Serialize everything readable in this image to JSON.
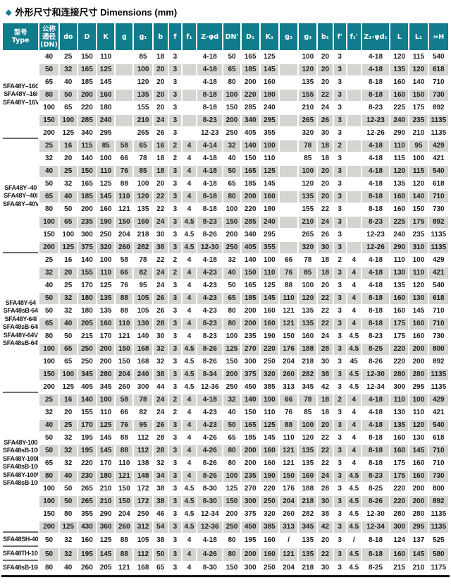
{
  "title": {
    "bullet": "◆",
    "text": "外形尺寸和连接尺寸 Dimensions (mm)"
  },
  "colors": {
    "header_bg": "#107c8c",
    "row_stripe": "#d4d4d1",
    "accent": "#107c8c",
    "bottom_border": "#141414"
  },
  "table": {
    "headers": [
      "型号\nType",
      "公称\n通径\n(DN)",
      "do",
      "D",
      "K",
      "g",
      "g₁",
      "b",
      "f",
      "f₁",
      "Z-φd",
      "DN'",
      "D₁",
      "K₁",
      "g₃",
      "g₂",
      "b₁",
      "f'",
      "f₁'",
      "Z₁-φd₁",
      "L",
      "L₁",
      "≈H"
    ],
    "groups": [
      {
        "models": [
          "SFA48Y–16C",
          "SFA48Y–16I",
          "SFA48Y–16V"
        ],
        "rows": [
          [
            "40",
            "25",
            "150",
            "110",
            "",
            "85",
            "18",
            "3",
            "",
            "4-18",
            "50",
            "165",
            "125",
            "",
            "100",
            "20",
            "3",
            "",
            "4-18",
            "120",
            "115",
            "540"
          ],
          [
            "50",
            "32",
            "165",
            "125",
            "",
            "100",
            "20",
            "3",
            "",
            "4-18",
            "65",
            "185",
            "145",
            "",
            "120",
            "20",
            "3",
            "",
            "4-18",
            "135",
            "120",
            "618"
          ],
          [
            "65",
            "40",
            "185",
            "145",
            "",
            "120",
            "20",
            "3",
            "",
            "4-18",
            "80",
            "200",
            "160",
            "",
            "135",
            "20",
            "3",
            "",
            "8-18",
            "160",
            "140",
            "710"
          ],
          [
            "80",
            "50",
            "200",
            "160",
            "",
            "135",
            "20",
            "3",
            "",
            "8-18",
            "100",
            "220",
            "180",
            "",
            "155",
            "22",
            "3",
            "",
            "8-18",
            "160",
            "150",
            "730"
          ],
          [
            "100",
            "65",
            "220",
            "180",
            "",
            "155",
            "20",
            "3",
            "",
            "8-18",
            "150",
            "285",
            "240",
            "",
            "210",
            "24",
            "3",
            "",
            "8-23",
            "225",
            "175",
            "892"
          ],
          [
            "150",
            "100",
            "285",
            "240",
            "",
            "210",
            "24",
            "3",
            "",
            "8-23",
            "200",
            "340",
            "295",
            "",
            "265",
            "26",
            "3",
            "",
            "12-23",
            "240",
            "235",
            "1135"
          ],
          [
            "200",
            "125",
            "340",
            "295",
            "",
            "265",
            "26",
            "3",
            "",
            "12-23",
            "250",
            "405",
            "355",
            "",
            "320",
            "30",
            "3",
            "",
            "12-26",
            "290",
            "210",
            "1135"
          ]
        ]
      },
      {
        "models": [
          "SFA48Y–40",
          "SFA48Y–40I",
          "SFA48Y–40V"
        ],
        "rows": [
          [
            "25",
            "16",
            "115",
            "85",
            "58",
            "65",
            "16",
            "2",
            "4",
            "4-14",
            "32",
            "140",
            "100",
            "",
            "78",
            "18",
            "2",
            "",
            "4-18",
            "110",
            "95",
            "429"
          ],
          [
            "32",
            "20",
            "140",
            "100",
            "66",
            "78",
            "18",
            "2",
            "4",
            "4-18",
            "40",
            "150",
            "110",
            "",
            "85",
            "18",
            "3",
            "",
            "4-18",
            "115",
            "100",
            "421"
          ],
          [
            "40",
            "25",
            "150",
            "110",
            "76",
            "85",
            "18",
            "3",
            "4",
            "4-18",
            "50",
            "165",
            "125",
            "",
            "100",
            "20",
            "3",
            "",
            "4-18",
            "120",
            "115",
            "540"
          ],
          [
            "50",
            "32",
            "165",
            "125",
            "88",
            "100",
            "20",
            "3",
            "4",
            "4-18",
            "65",
            "185",
            "145",
            "",
            "120",
            "20",
            "3",
            "",
            "4-18",
            "135",
            "120",
            "618"
          ],
          [
            "65",
            "40",
            "185",
            "145",
            "110",
            "120",
            "22",
            "3",
            "4",
            "8-18",
            "80",
            "200",
            "160",
            "",
            "135",
            "20",
            "3",
            "",
            "8-18",
            "160",
            "140",
            "710"
          ],
          [
            "80",
            "50",
            "200",
            "160",
            "121",
            "135",
            "22",
            "3",
            "4",
            "8-18",
            "100",
            "220",
            "180",
            "",
            "155",
            "22",
            "3",
            "",
            "8-18",
            "160",
            "150",
            "730"
          ],
          [
            "100",
            "65",
            "235",
            "190",
            "150",
            "160",
            "24",
            "3",
            "4.5",
            "8-23",
            "150",
            "285",
            "240",
            "",
            "210",
            "24",
            "3",
            "",
            "8-23",
            "225",
            "175",
            "892"
          ],
          [
            "150",
            "100",
            "300",
            "250",
            "204",
            "218",
            "30",
            "3",
            "4.5",
            "8-26",
            "200",
            "340",
            "295",
            "",
            "265",
            "26",
            "3",
            "",
            "12-23",
            "240",
            "235",
            "1135"
          ],
          [
            "200",
            "125",
            "375",
            "320",
            "260",
            "282",
            "38",
            "3",
            "4.5",
            "12-30",
            "250",
            "405",
            "355",
            "",
            "320",
            "30",
            "3",
            "",
            "12-26",
            "290",
            "310",
            "1135"
          ]
        ]
      },
      {
        "models": [
          "SFA48Y-64",
          "SFA48sB-64",
          "SFA48Y-64I",
          "SFA48sB-64I",
          "SFA48Y-64V",
          "SFA48sB-64V"
        ],
        "rows": [
          [
            "25",
            "16",
            "140",
            "100",
            "58",
            "78",
            "22",
            "2",
            "4",
            "4-18",
            "32",
            "140",
            "100",
            "66",
            "78",
            "18",
            "2",
            "4",
            "4-18",
            "110",
            "100",
            "429"
          ],
          [
            "32",
            "20",
            "155",
            "110",
            "66",
            "82",
            "24",
            "2",
            "4",
            "4-23",
            "40",
            "150",
            "110",
            "76",
            "85",
            "18",
            "3",
            "4",
            "4-18",
            "130",
            "110",
            "421"
          ],
          [
            "40",
            "25",
            "170",
            "125",
            "76",
            "95",
            "24",
            "3",
            "4",
            "4-23",
            "50",
            "165",
            "125",
            "88",
            "100",
            "20",
            "3",
            "4",
            "4-18",
            "135",
            "120",
            "540"
          ],
          [
            "50",
            "32",
            "180",
            "135",
            "88",
            "105",
            "26",
            "3",
            "4",
            "4-23",
            "65",
            "185",
            "145",
            "110",
            "120",
            "22",
            "3",
            "4",
            "8-18",
            "160",
            "130",
            "618"
          ],
          [
            "50",
            "32",
            "180",
            "135",
            "88",
            "105",
            "26",
            "3",
            "4",
            "4-23",
            "80",
            "200",
            "160",
            "121",
            "135",
            "22",
            "3",
            "4",
            "8-18",
            "160",
            "145",
            "710"
          ],
          [
            "65",
            "40",
            "205",
            "160",
            "110",
            "130",
            "28",
            "3",
            "4",
            "8-23",
            "80",
            "200",
            "160",
            "121",
            "135",
            "22",
            "3",
            "4",
            "8-18",
            "175",
            "160",
            "710"
          ],
          [
            "80",
            "50",
            "215",
            "170",
            "121",
            "140",
            "30",
            "3",
            "4",
            "8-23",
            "100",
            "235",
            "190",
            "150",
            "160",
            "24",
            "3",
            "4.5",
            "8-23",
            "175",
            "160",
            "730"
          ],
          [
            "100",
            "65",
            "250",
            "200",
            "150",
            "168",
            "32",
            "3",
            "4.5",
            "8-26",
            "125",
            "270",
            "220",
            "176",
            "188",
            "28",
            "3",
            "4.5",
            "8-25",
            "220",
            "200",
            "800"
          ],
          [
            "100",
            "65",
            "250",
            "200",
            "150",
            "168",
            "32",
            "3",
            "4.5",
            "8-26",
            "150",
            "300",
            "250",
            "204",
            "218",
            "30",
            "3",
            "45",
            "8-26",
            "220",
            "200",
            "892"
          ],
          [
            "150",
            "100",
            "345",
            "280",
            "204",
            "240",
            "38",
            "3",
            "4.5",
            "8-34",
            "200",
            "375",
            "320",
            "260",
            "282",
            "38",
            "3",
            "4.5",
            "12-30",
            "280",
            "280",
            "1135"
          ],
          [
            "200",
            "125",
            "405",
            "345",
            "260",
            "300",
            "44",
            "3",
            "4.5",
            "12-36",
            "250",
            "450",
            "385",
            "313",
            "345",
            "42",
            "3",
            "4.5",
            "12-34",
            "300",
            "295",
            "1135"
          ]
        ]
      },
      {
        "models": [
          "SFA48Y-100",
          "SFA48sB-100",
          "SFA48Y-100I",
          "SFA48sB-100I",
          "SFA48Y-100V",
          "SFA48sB-100V"
        ],
        "rows": [
          [
            "25",
            "16",
            "140",
            "100",
            "58",
            "78",
            "24",
            "2",
            "4",
            "4-18",
            "32",
            "140",
            "100",
            "66",
            "78",
            "18",
            "2",
            "4",
            "4-18",
            "110",
            "100",
            "429"
          ],
          [
            "32",
            "20",
            "155",
            "110",
            "66",
            "82",
            "24",
            "2",
            "4",
            "4-23",
            "40",
            "150",
            "110",
            "76",
            "85",
            "18",
            "3",
            "4",
            "4-18",
            "130",
            "110",
            "421"
          ],
          [
            "40",
            "25",
            "170",
            "125",
            "76",
            "95",
            "26",
            "3",
            "4",
            "4-23",
            "50",
            "165",
            "125",
            "88",
            "100",
            "20",
            "3",
            "4",
            "4-18",
            "135",
            "120",
            "540"
          ],
          [
            "50",
            "32",
            "195",
            "145",
            "88",
            "112",
            "28",
            "3",
            "4",
            "4-26",
            "65",
            "185",
            "145",
            "110",
            "120",
            "22",
            "3",
            "4",
            "8-18",
            "160",
            "130",
            "618"
          ],
          [
            "50",
            "32",
            "195",
            "145",
            "88",
            "112",
            "28",
            "3",
            "4",
            "4-26",
            "80",
            "200",
            "160",
            "121",
            "135",
            "22",
            "3",
            "4",
            "8-18",
            "160",
            "145",
            "710"
          ],
          [
            "65",
            "32",
            "220",
            "170",
            "110",
            "138",
            "32",
            "3",
            "4",
            "8-26",
            "80",
            "200",
            "160",
            "121",
            "135",
            "22",
            "3",
            "4",
            "8-18",
            "175",
            "160",
            "710"
          ],
          [
            "80",
            "40",
            "230",
            "180",
            "121",
            "148",
            "34",
            "3",
            "4",
            "8-26",
            "100",
            "235",
            "190",
            "150",
            "160",
            "24",
            "3",
            "4.5",
            "8-23",
            "175",
            "160",
            "730"
          ],
          [
            "100",
            "50",
            "265",
            "210",
            "150",
            "172",
            "38",
            "3",
            "4.5",
            "8-30",
            "125",
            "270",
            "220",
            "176",
            "188",
            "28",
            "3",
            "4.5",
            "8-25",
            "220",
            "200",
            "800"
          ],
          [
            "100",
            "50",
            "265",
            "210",
            "150",
            "172",
            "38",
            "3",
            "4.5",
            "8-30",
            "150",
            "300",
            "250",
            "204",
            "218",
            "30",
            "3",
            "4.5",
            "8-26",
            "220",
            "200",
            "892"
          ],
          [
            "150",
            "80",
            "355",
            "290",
            "204",
            "250",
            "46",
            "3",
            "4.5",
            "12-34",
            "200",
            "375",
            "320",
            "260",
            "282",
            "38",
            "3",
            "4.5",
            "12-30",
            "280",
            "280",
            "1135"
          ],
          [
            "200",
            "125",
            "430",
            "360",
            "260",
            "312",
            "54",
            "3",
            "4.5",
            "12-36",
            "250",
            "450",
            "385",
            "313",
            "345",
            "42",
            "3",
            "4.5",
            "12-34",
            "300",
            "295",
            "1135"
          ]
        ]
      },
      {
        "models": [
          "SFA48SH-40"
        ],
        "rows": [
          [
            "50",
            "32",
            "160",
            "125",
            "88",
            "105",
            "38",
            "3",
            "4",
            "4-18",
            "80",
            "195",
            "160",
            "/",
            "135",
            "20",
            "3",
            "/",
            "8-18",
            "124",
            "137",
            "525"
          ]
        ]
      },
      {
        "models": [
          "SFA48TH-100"
        ],
        "rows": [
          [
            "50",
            "32",
            "195",
            "145",
            "88",
            "112",
            "50",
            "3",
            "4",
            "4-26",
            "80",
            "200",
            "160",
            "121",
            "135",
            "22",
            "3",
            "4.5",
            "8-18",
            "160",
            "145",
            "580"
          ]
        ]
      },
      {
        "models": [
          "SFA48sB-160"
        ],
        "rows": [
          [
            "80",
            "40",
            "260",
            "205",
            "121",
            "168",
            "65",
            "3",
            "4",
            "8-30",
            "150",
            "300",
            "250",
            "204",
            "218",
            "30",
            "3",
            "4.5",
            "8-25",
            "215",
            "210",
            "1175"
          ]
        ]
      }
    ]
  }
}
